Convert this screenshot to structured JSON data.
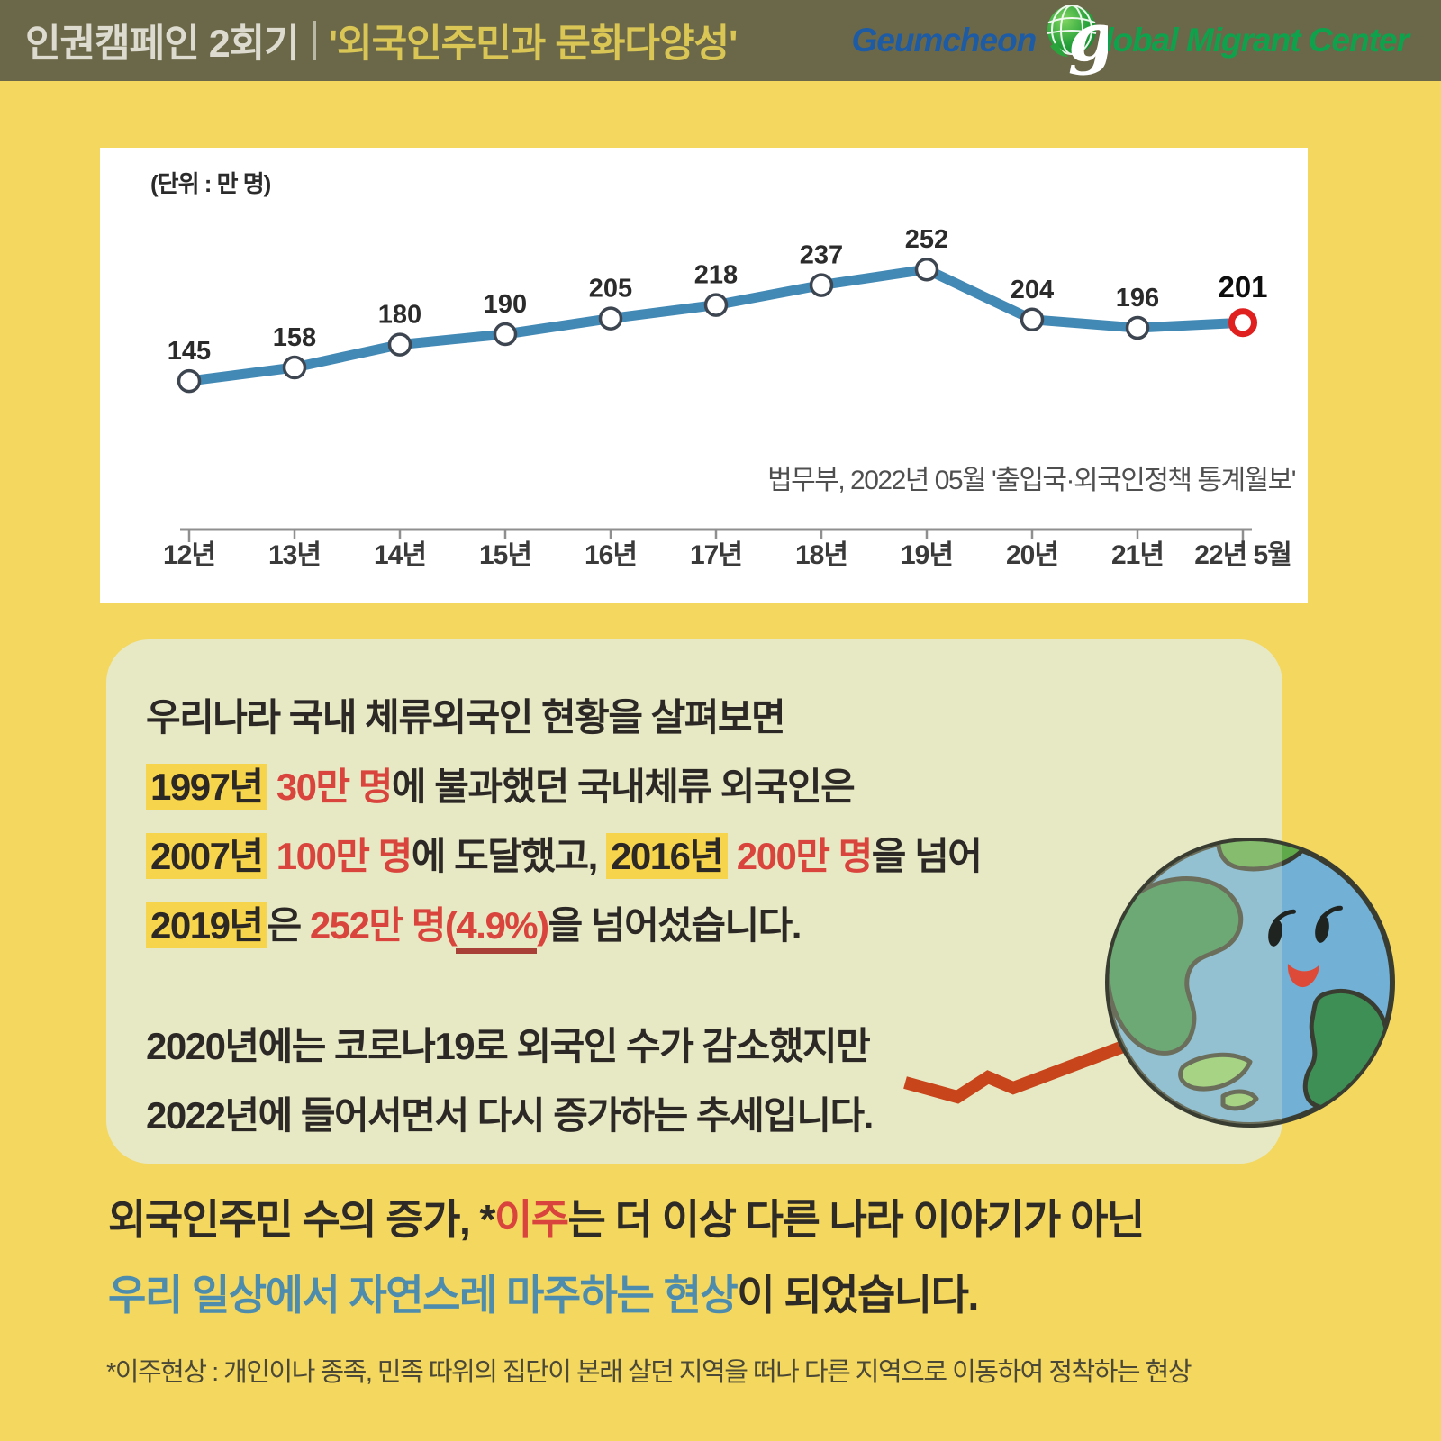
{
  "header": {
    "title_part1": "인권캠페인 2회기",
    "title_part2": "'외국인주민과 문화다양성'",
    "logo": {
      "part1": "Geumcheon",
      "g": "g",
      "part2": "lobal Migrant Center"
    }
  },
  "chart_data": {
    "type": "line",
    "categories": [
      "12년",
      "13년",
      "14년",
      "15년",
      "16년",
      "17년",
      "18년",
      "19년",
      "20년",
      "21년",
      "22년 5월"
    ],
    "values": [
      145,
      158,
      180,
      190,
      205,
      218,
      237,
      252,
      204,
      196,
      201
    ],
    "unit_label": "(단위 : 만 명)",
    "source": "법무부, 2022년 05월 '출입국·외국인정책 통계월보'",
    "legend": "none",
    "grid": false,
    "line_color": "#4289b5",
    "marker_stroke": "#3d4550",
    "highlight_last_color": "#e01f1f",
    "axis_color": "#8f8f8f"
  },
  "info_box": {
    "lines": [
      [
        {
          "text": "우리나라 국내 체류외국인 현황을 살펴보면",
          "style": ""
        }
      ],
      [
        {
          "text": "1997년",
          "style": "hl"
        },
        {
          "text": " ",
          "style": ""
        },
        {
          "text": "30만 명",
          "style": "red"
        },
        {
          "text": "에 불과했던 국내체류 외국인은",
          "style": ""
        }
      ],
      [
        {
          "text": "2007년",
          "style": "hl"
        },
        {
          "text": " ",
          "style": ""
        },
        {
          "text": "100만 명",
          "style": "red"
        },
        {
          "text": "에 도달했고, ",
          "style": ""
        },
        {
          "text": "2016년",
          "style": "hl"
        },
        {
          "text": " ",
          "style": ""
        },
        {
          "text": "200만 명",
          "style": "red"
        },
        {
          "text": "을 넘어",
          "style": ""
        }
      ],
      [
        {
          "text": "2019년",
          "style": "hl"
        },
        {
          "text": "은 ",
          "style": ""
        },
        {
          "text": "252만 명",
          "style": "red"
        },
        {
          "text": "(",
          "style": "red"
        },
        {
          "text": "4.9%",
          "style": "red u"
        },
        {
          "text": ")",
          "style": "red"
        },
        {
          "text": "을 넘어섰습니다.",
          "style": ""
        }
      ],
      [
        {
          "text": "2020년에는 코로나19로 외국인 수가 감소했지만",
          "style": ""
        }
      ],
      [
        {
          "text": "2022년에 들어서면서 다시 증가하는 추세입니다.",
          "style": ""
        }
      ]
    ]
  },
  "conclusion": {
    "lines": [
      [
        {
          "text": "외국인주민 수의 증가, *",
          "style": ""
        },
        {
          "text": "이주",
          "style": "red"
        },
        {
          "text": "는 더 이상 다른 나라 이야기가 아닌",
          "style": ""
        }
      ],
      [
        {
          "text": "우리 일상에서 자연스레 마주하는 현상",
          "style": "blue"
        },
        {
          "text": "이 되었습니다.",
          "style": ""
        }
      ]
    ]
  },
  "footnote": "*이주현상 : 개인이나 종족, 민족 따위의 집단이 본래 살던 지역을 떠나 다른 지역으로 이동하여 정착하는 현상",
  "colors": {
    "header_bg": "#6b6849",
    "page_bg": "#f3d75f",
    "box_bg": "#e7e9c5",
    "highlight": "#f6d44c",
    "accent_red": "#d9453d",
    "accent_blue": "#4e8cad",
    "arrow": "#c8441a",
    "logo_blue": "#1d5ba5",
    "logo_green": "#0ea24d"
  }
}
